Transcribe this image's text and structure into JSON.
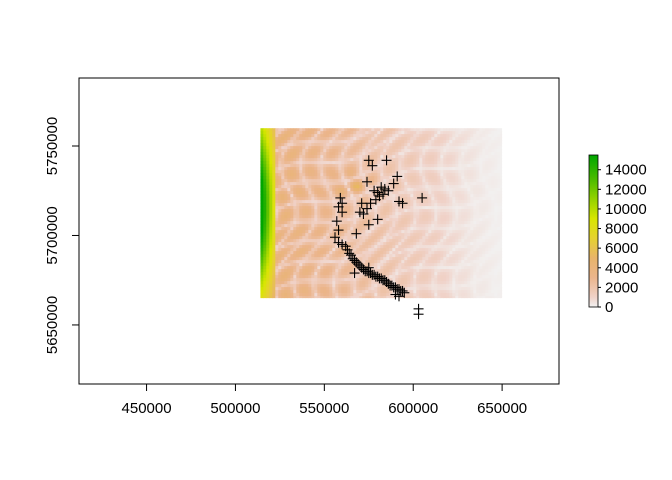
{
  "chart_data": {
    "type": "heatmap",
    "title": "",
    "xlabel": "",
    "ylabel": "",
    "xlim": [
      412000,
      682000
    ],
    "ylim": [
      5617000,
      5788000
    ],
    "x_ticks": [
      450000,
      500000,
      550000,
      600000,
      650000
    ],
    "y_ticks": [
      5650000,
      5700000,
      5750000
    ],
    "x_tick_labels": [
      "450000",
      "500000",
      "550000",
      "600000",
      "650000"
    ],
    "y_tick_labels": [
      "5650000",
      "5700000",
      "5750000"
    ],
    "raster_extent": {
      "xmin": 514000,
      "xmax": 650000,
      "ymin": 5665000,
      "ymax": 5760000
    },
    "colorbar": {
      "min": 0,
      "max": 15500,
      "ticks": [
        0,
        2000,
        4000,
        6000,
        8000,
        10000,
        12000,
        14000
      ],
      "tick_labels": [
        "0",
        "2000",
        "4000",
        "6000",
        "8000",
        "10000",
        "12000",
        "14000"
      ],
      "stops": [
        {
          "value": 0,
          "color": "#f2f2f2"
        },
        {
          "value": 1000,
          "color": "#f0d2c8"
        },
        {
          "value": 3000,
          "color": "#ebb58c"
        },
        {
          "value": 5000,
          "color": "#e8b46a"
        },
        {
          "value": 7000,
          "color": "#e6d230"
        },
        {
          "value": 9000,
          "color": "#d8e600"
        },
        {
          "value": 11000,
          "color": "#94d200"
        },
        {
          "value": 13000,
          "color": "#4cbc00"
        },
        {
          "value": 15500,
          "color": "#00a600"
        }
      ]
    },
    "points_marker": "+",
    "points": [
      [
        575000,
        5742000
      ],
      [
        577000,
        5739000
      ],
      [
        585000,
        5742000
      ],
      [
        574000,
        5730000
      ],
      [
        591000,
        5733000
      ],
      [
        589000,
        5729000
      ],
      [
        580000,
        5724000
      ],
      [
        582000,
        5727000
      ],
      [
        584000,
        5726000
      ],
      [
        586000,
        5725000
      ],
      [
        583000,
        5723000
      ],
      [
        581000,
        5722000
      ],
      [
        578000,
        5725000
      ],
      [
        576000,
        5718000
      ],
      [
        574000,
        5715000
      ],
      [
        572000,
        5712000
      ],
      [
        570000,
        5713000
      ],
      [
        571000,
        5718000
      ],
      [
        579000,
        5720000
      ],
      [
        580000,
        5709000
      ],
      [
        575000,
        5706000
      ],
      [
        559000,
        5721000
      ],
      [
        560000,
        5718000
      ],
      [
        558000,
        5716000
      ],
      [
        560000,
        5713000
      ],
      [
        592000,
        5719000
      ],
      [
        594000,
        5718000
      ],
      [
        605000,
        5721000
      ],
      [
        568000,
        5701000
      ],
      [
        557000,
        5708000
      ],
      [
        558000,
        5703000
      ],
      [
        556000,
        5699000
      ],
      [
        558000,
        5696000
      ],
      [
        560000,
        5695000
      ],
      [
        562000,
        5694000
      ],
      [
        563000,
        5692000
      ],
      [
        564000,
        5690000
      ],
      [
        565000,
        5689000
      ],
      [
        566000,
        5687000
      ],
      [
        567000,
        5686000
      ],
      [
        568000,
        5685000
      ],
      [
        569000,
        5684000
      ],
      [
        570000,
        5683000
      ],
      [
        571000,
        5682000
      ],
      [
        572000,
        5681000
      ],
      [
        573000,
        5680000
      ],
      [
        574000,
        5680000
      ],
      [
        575000,
        5679000
      ],
      [
        576000,
        5679000
      ],
      [
        577000,
        5678000
      ],
      [
        578000,
        5678000
      ],
      [
        579000,
        5677000
      ],
      [
        580000,
        5677000
      ],
      [
        581000,
        5676000
      ],
      [
        582000,
        5676000
      ],
      [
        583000,
        5675000
      ],
      [
        584000,
        5675000
      ],
      [
        585000,
        5674000
      ],
      [
        586000,
        5673000
      ],
      [
        587000,
        5672000
      ],
      [
        588000,
        5672000
      ],
      [
        589000,
        5671000
      ],
      [
        590000,
        5671000
      ],
      [
        591000,
        5670000
      ],
      [
        592000,
        5670000
      ],
      [
        593000,
        5669000
      ],
      [
        594000,
        5669000
      ],
      [
        595000,
        5668000
      ],
      [
        590000,
        5667000
      ],
      [
        592000,
        5666000
      ],
      [
        567000,
        5679000
      ],
      [
        575000,
        5682000
      ],
      [
        603000,
        5659000
      ],
      [
        603000,
        5656000
      ]
    ]
  }
}
